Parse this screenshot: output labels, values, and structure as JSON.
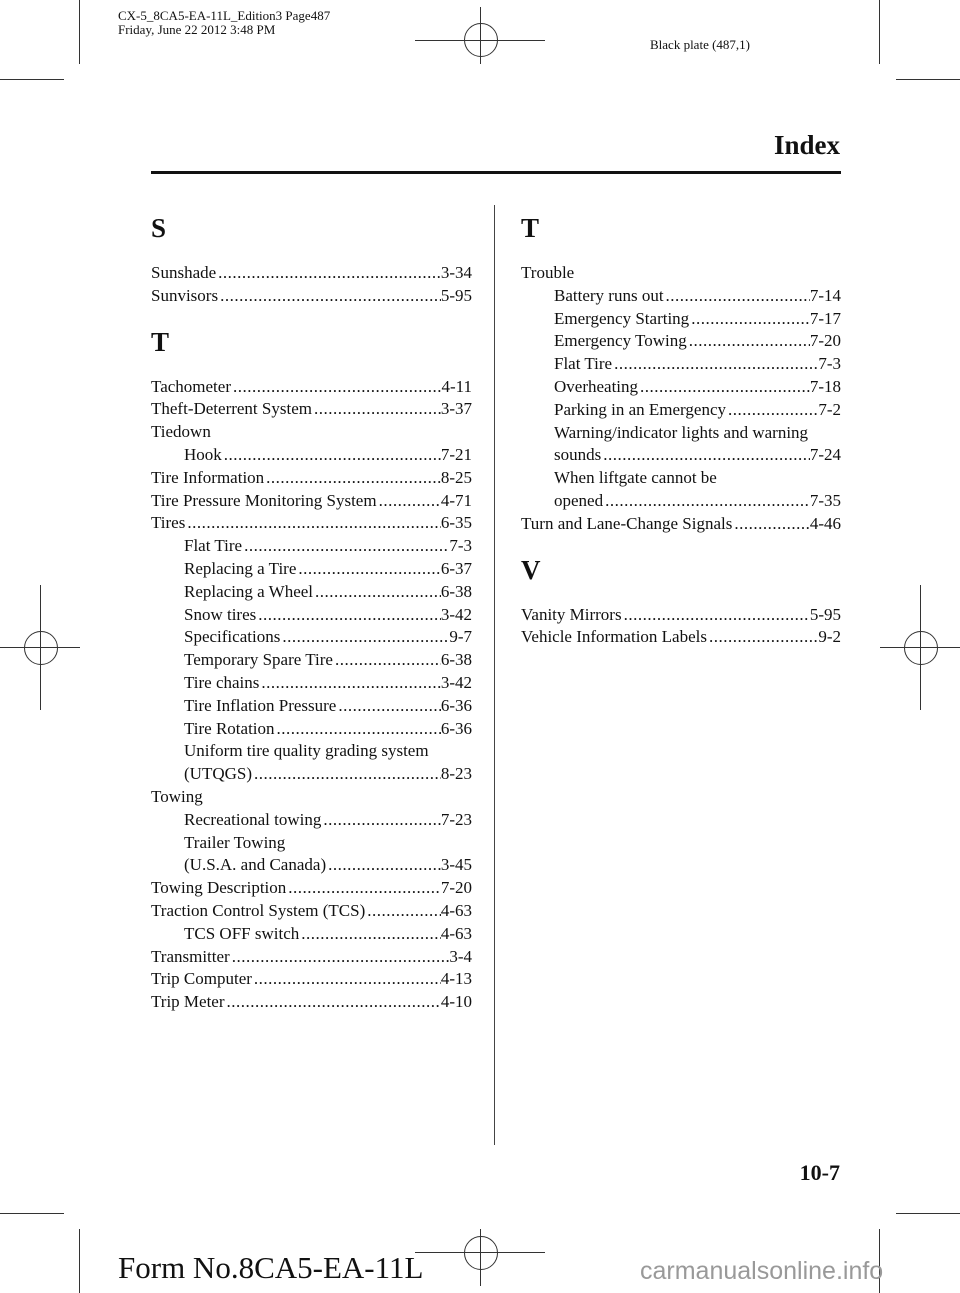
{
  "header": {
    "file_line": "CX-5_8CA5-EA-11L_Edition3 Page487",
    "date_line": "Friday, June 22 2012 3:48 PM",
    "plate": "Black plate (487,1)"
  },
  "section_title": "Index",
  "left_column": [
    {
      "heading": "S",
      "entries": [
        {
          "label": "Sunshade",
          "page": "3-34"
        },
        {
          "label": "Sunvisors",
          "page": "5-95"
        }
      ]
    },
    {
      "heading": "T",
      "entries": [
        {
          "label": "Tachometer",
          "page": "4-11"
        },
        {
          "label": "Theft-Deterrent System",
          "page": "3-37"
        },
        {
          "label": "Tiedown"
        },
        {
          "label": "Hook",
          "page": "7-21",
          "sub": true
        },
        {
          "label": "Tire Information",
          "page": "8-25"
        },
        {
          "label": "Tire Pressure Monitoring System",
          "page": "4-71"
        },
        {
          "label": "Tires",
          "page": "6-35"
        },
        {
          "label": "Flat Tire",
          "page": "7-3",
          "sub": true
        },
        {
          "label": "Replacing a Tire",
          "page": "6-37",
          "sub": true
        },
        {
          "label": "Replacing a Wheel",
          "page": "6-38",
          "sub": true
        },
        {
          "label": "Snow tires",
          "page": "3-42",
          "sub": true
        },
        {
          "label": "Specifications",
          "page": "9-7",
          "sub": true
        },
        {
          "label": "Temporary Spare Tire",
          "page": "6-38",
          "sub": true
        },
        {
          "label": "Tire chains",
          "page": "3-42",
          "sub": true
        },
        {
          "label": "Tire Inflation Pressure",
          "page": "6-36",
          "sub": true
        },
        {
          "label": "Tire Rotation",
          "page": "6-36",
          "sub": true
        },
        {
          "label": "Uniform tire quality grading system",
          "sub": true
        },
        {
          "label": "(UTQGS)",
          "page": "8-23",
          "sub": true
        },
        {
          "label": "Towing"
        },
        {
          "label": "Recreational towing",
          "page": "7-23",
          "sub": true
        },
        {
          "label": "Trailer Towing",
          "sub": true
        },
        {
          "label": "(U.S.A. and Canada)",
          "page": "3-45",
          "sub": true
        },
        {
          "label": "Towing Description",
          "page": "7-20"
        },
        {
          "label": "Traction Control System (TCS)",
          "page": "4-63"
        },
        {
          "label": "TCS OFF switch",
          "page": "4-63",
          "sub": true
        },
        {
          "label": "Transmitter",
          "page": "3-4"
        },
        {
          "label": "Trip Computer",
          "page": "4-13"
        },
        {
          "label": "Trip Meter",
          "page": "4-10"
        }
      ]
    }
  ],
  "right_column": [
    {
      "heading": "T",
      "entries": [
        {
          "label": "Trouble"
        },
        {
          "label": "Battery runs out",
          "page": "7-14",
          "sub": true
        },
        {
          "label": "Emergency Starting",
          "page": "7-17",
          "sub": true
        },
        {
          "label": "Emergency Towing",
          "page": "7-20",
          "sub": true
        },
        {
          "label": "Flat Tire",
          "page": "7-3",
          "sub": true
        },
        {
          "label": "Overheating",
          "page": "7-18",
          "sub": true
        },
        {
          "label": "Parking in an Emergency",
          "page": "7-2",
          "sub": true
        },
        {
          "label": "Warning/indicator lights and warning",
          "sub": true
        },
        {
          "label": "sounds",
          "page": "7-24",
          "sub": true
        },
        {
          "label": "When liftgate cannot be",
          "sub": true
        },
        {
          "label": "opened",
          "page": "7-35",
          "sub": true
        },
        {
          "label": "Turn and Lane-Change Signals",
          "page": "4-46"
        }
      ]
    },
    {
      "heading": "V",
      "entries": [
        {
          "label": "Vanity Mirrors",
          "page": "5-95"
        },
        {
          "label": "Vehicle Information Labels",
          "page": "9-2"
        }
      ]
    }
  ],
  "page_number": "10-7",
  "form_number": "Form No.8CA5-EA-11L",
  "watermark": "carmanualsonline.info"
}
